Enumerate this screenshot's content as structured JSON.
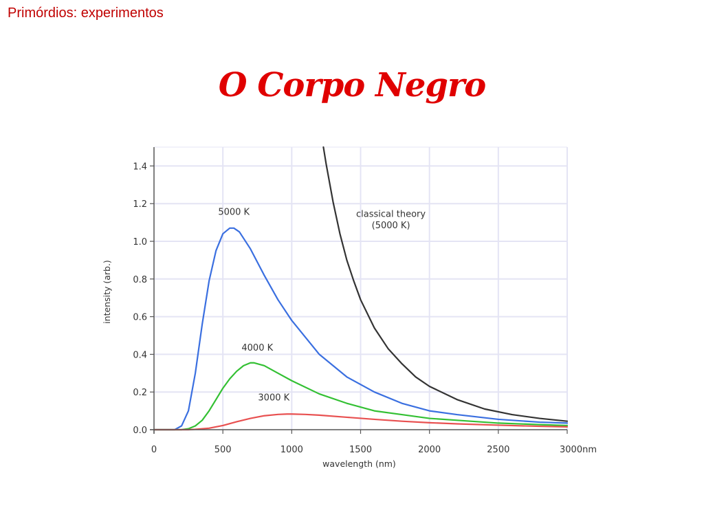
{
  "slide": {
    "header": "Primórdios: experimentos",
    "title": "O Corpo Negro"
  },
  "colors": {
    "header": "#c00000",
    "title": "#e00000",
    "grid": "#e4e4f4",
    "axis": "#555555"
  },
  "chart_data": {
    "type": "line",
    "xlabel": "wavelength (nm)",
    "ylabel": "intensity (arb.)",
    "xlim": [
      0,
      3000
    ],
    "ylim": [
      0,
      1.5
    ],
    "xticks": [
      0,
      500,
      1000,
      1500,
      2000,
      2500,
      3000
    ],
    "xtick_labels": [
      "0",
      "500",
      "1000",
      "1500",
      "2000",
      "2500",
      "3000nm"
    ],
    "yticks": [
      0.0,
      0.2,
      0.4,
      0.6,
      0.8,
      1.0,
      1.2,
      1.4
    ],
    "ytick_labels": [
      "0.0",
      "0.2",
      "0.4",
      "0.6",
      "0.8",
      "1.0",
      "1.2",
      "1.4"
    ],
    "grid": true,
    "series": [
      {
        "name": "5000 K",
        "color": "#3a6fe0",
        "x": [
          0,
          150,
          200,
          250,
          300,
          350,
          400,
          450,
          500,
          550,
          580,
          620,
          700,
          800,
          900,
          1000,
          1200,
          1400,
          1600,
          1800,
          2000,
          2200,
          2500,
          2800,
          3000
        ],
        "y": [
          0,
          0,
          0.02,
          0.1,
          0.3,
          0.56,
          0.79,
          0.95,
          1.04,
          1.07,
          1.07,
          1.05,
          0.96,
          0.82,
          0.69,
          0.58,
          0.4,
          0.28,
          0.2,
          0.14,
          0.1,
          0.08,
          0.055,
          0.04,
          0.035
        ]
      },
      {
        "name": "4000 K",
        "color": "#33c033",
        "x": [
          0,
          200,
          250,
          300,
          350,
          400,
          450,
          500,
          550,
          600,
          650,
          700,
          725,
          800,
          900,
          1000,
          1200,
          1400,
          1600,
          1800,
          2000,
          2200,
          2500,
          2800,
          3000
        ],
        "y": [
          0,
          0,
          0.005,
          0.02,
          0.05,
          0.1,
          0.16,
          0.22,
          0.27,
          0.31,
          0.34,
          0.355,
          0.355,
          0.34,
          0.3,
          0.26,
          0.19,
          0.14,
          0.1,
          0.08,
          0.06,
          0.05,
          0.035,
          0.027,
          0.022
        ]
      },
      {
        "name": "3000 K",
        "color": "#e85050",
        "x": [
          0,
          250,
          300,
          400,
          500,
          600,
          700,
          800,
          900,
          966,
          1000,
          1100,
          1200,
          1400,
          1600,
          1800,
          2000,
          2200,
          2500,
          2800,
          3000
        ],
        "y": [
          0,
          0,
          0.002,
          0.008,
          0.022,
          0.042,
          0.06,
          0.074,
          0.081,
          0.083,
          0.083,
          0.081,
          0.077,
          0.066,
          0.055,
          0.045,
          0.037,
          0.031,
          0.024,
          0.018,
          0.015
        ]
      },
      {
        "name": "classical theory (5000 K)",
        "color": "#333333",
        "x": [
          1230,
          1250,
          1300,
          1350,
          1400,
          1450,
          1500,
          1600,
          1700,
          1800,
          1900,
          2000,
          2200,
          2400,
          2600,
          2800,
          3000
        ],
        "y": [
          1.5,
          1.41,
          1.21,
          1.04,
          0.9,
          0.79,
          0.69,
          0.54,
          0.43,
          0.35,
          0.28,
          0.23,
          0.16,
          0.11,
          0.08,
          0.06,
          0.045
        ]
      }
    ],
    "annotations": [
      {
        "text": "5000 K",
        "x": 580,
        "y": 1.14
      },
      {
        "text": "4000 K",
        "x": 750,
        "y": 0.42
      },
      {
        "text": "3000 K",
        "x": 870,
        "y": 0.155
      },
      {
        "text": "classical theory",
        "x": 1720,
        "y": 1.13
      },
      {
        "text": "(5000 K)",
        "x": 1720,
        "y": 1.07
      }
    ]
  }
}
